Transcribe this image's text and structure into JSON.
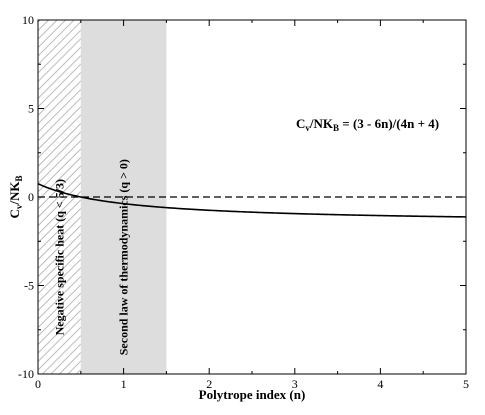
{
  "chart_data": {
    "type": "line",
    "title": "",
    "xlabel": "Polytrope index (n)",
    "ylabel": {
      "main": "C",
      "sub1": "v",
      "mid": "/NK",
      "sub2": "B"
    },
    "xlim": [
      0,
      5
    ],
    "ylim": [
      -10,
      10
    ],
    "xticks": [
      0,
      1,
      2,
      3,
      4,
      5
    ],
    "yticks": [
      -10,
      -5,
      0,
      5,
      10
    ],
    "grid": false,
    "series": [
      {
        "formula": "(3 - 6n)/(4n + 4)",
        "x": [
          0,
          0.1,
          0.2,
          0.3,
          0.4,
          0.5,
          0.75,
          1,
          1.25,
          1.5,
          1.75,
          2,
          2.5,
          3,
          3.5,
          4,
          4.5,
          5
        ],
        "y": [
          0.75,
          0.545,
          0.375,
          0.231,
          0.107,
          0,
          -0.214,
          -0.375,
          -0.5,
          -0.6,
          -0.682,
          -0.75,
          -0.857,
          -0.938,
          -1.0,
          -1.05,
          -1.091,
          -1.125
        ],
        "color": "#000000",
        "style": "solid"
      }
    ],
    "reference_lines": [
      {
        "y": 0,
        "style": "dashed",
        "color": "#000000"
      }
    ],
    "regions": [
      {
        "x0": 0,
        "x1": 0.5,
        "fill": "hatched",
        "color": "#bbbbbb",
        "label": "Negative specific heat (q < 5/3)"
      },
      {
        "x0": 0.5,
        "x1": 1.5,
        "fill": "solid",
        "color": "#dddddd",
        "label": "Second law of thermodynamics (q > 0)"
      }
    ],
    "annotation": {
      "main": "C",
      "sub1": "v",
      "mid": "/NK",
      "sub2": "B",
      "rest": " = (3 - 6n)/(4n + 4)",
      "x": 3.85,
      "y": 3.9
    }
  }
}
